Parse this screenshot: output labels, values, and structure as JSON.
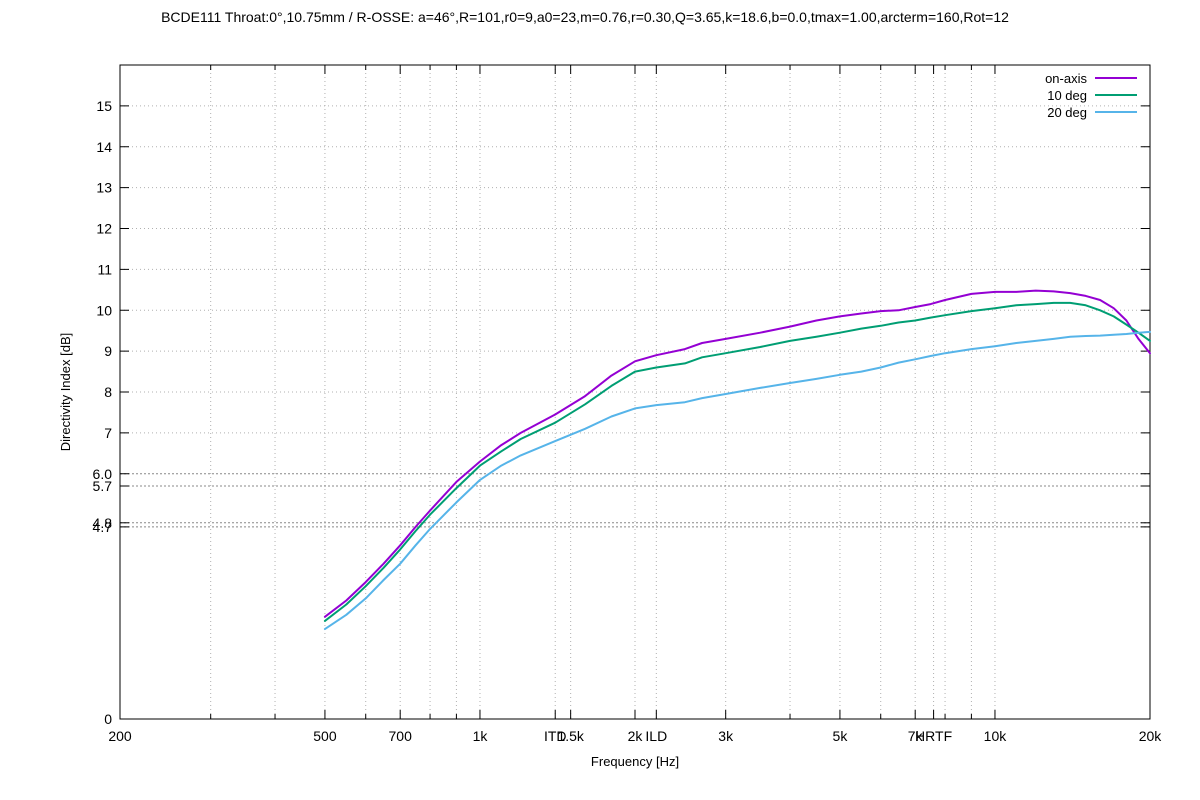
{
  "chart_data": {
    "type": "line",
    "title": "BCDE111 Throat:0°,10.75mm / R-OSSE: a=46°,R=101,r0=9,a0=23,m=0.76,r=0.30,Q=3.65,k=18.6,b=0.0,tmax=1.00,arcterm=160,Rot=12",
    "xlabel": "Frequency [Hz]",
    "ylabel": "Directivity Index [dB]",
    "xscale": "log",
    "xlim": [
      200,
      20000
    ],
    "ylim": [
      0,
      16
    ],
    "grid": true,
    "legend_position": "top-right",
    "x_ticks": [
      {
        "value": 200,
        "label": "200"
      },
      {
        "value": 500,
        "label": "500"
      },
      {
        "value": 700,
        "label": "700"
      },
      {
        "value": 1000,
        "label": "1k"
      },
      {
        "value": 1400,
        "label": "ITD"
      },
      {
        "value": 1500,
        "label": "1.5k"
      },
      {
        "value": 2000,
        "label": "2k"
      },
      {
        "value": 2200,
        "label": "ILD"
      },
      {
        "value": 3000,
        "label": "3k"
      },
      {
        "value": 5000,
        "label": "5k"
      },
      {
        "value": 7000,
        "label": "7k"
      },
      {
        "value": 7600,
        "label": "HRTF"
      },
      {
        "value": 10000,
        "label": "10k"
      },
      {
        "value": 20000,
        "label": "20k"
      }
    ],
    "x_minor_ticks": [
      300,
      400,
      600,
      800,
      900,
      4000,
      6000,
      8000,
      9000
    ],
    "y_ticks": [
      {
        "value": 0,
        "label": "0"
      },
      {
        "value": 4.7,
        "label": "4.7"
      },
      {
        "value": 4.8,
        "label": "4.8"
      },
      {
        "value": 5.7,
        "label": "5.7"
      },
      {
        "value": 6.0,
        "label": "6.0"
      },
      {
        "value": 7,
        "label": "7"
      },
      {
        "value": 8,
        "label": "8"
      },
      {
        "value": 9,
        "label": "9"
      },
      {
        "value": 10,
        "label": "10"
      },
      {
        "value": 11,
        "label": "11"
      },
      {
        "value": 12,
        "label": "12"
      },
      {
        "value": 13,
        "label": "13"
      },
      {
        "value": 14,
        "label": "14"
      },
      {
        "value": 15,
        "label": "15"
      }
    ],
    "series": [
      {
        "name": "on-axis",
        "color": "#9400d3",
        "x": [
          500,
          550,
          600,
          650,
          700,
          750,
          800,
          900,
          1000,
          1100,
          1200,
          1400,
          1600,
          1800,
          2000,
          2200,
          2500,
          2700,
          3000,
          3500,
          4000,
          4500,
          5000,
          5500,
          6000,
          6500,
          7000,
          7500,
          8000,
          9000,
          10000,
          11000,
          12000,
          13000,
          14000,
          15000,
          16000,
          17000,
          18000,
          19000,
          20000
        ],
        "values": [
          2.5,
          2.9,
          3.35,
          3.8,
          4.25,
          4.7,
          5.1,
          5.8,
          6.3,
          6.7,
          7.0,
          7.45,
          7.9,
          8.4,
          8.75,
          8.9,
          9.05,
          9.2,
          9.3,
          9.45,
          9.6,
          9.75,
          9.85,
          9.92,
          9.98,
          10.0,
          10.08,
          10.15,
          10.25,
          10.4,
          10.45,
          10.45,
          10.48,
          10.46,
          10.42,
          10.35,
          10.25,
          10.05,
          9.75,
          9.3,
          8.95
        ]
      },
      {
        "name": "10 deg",
        "color": "#009e73",
        "x": [
          500,
          550,
          600,
          650,
          700,
          750,
          800,
          900,
          1000,
          1100,
          1200,
          1400,
          1600,
          1800,
          2000,
          2200,
          2500,
          2700,
          3000,
          3500,
          4000,
          4500,
          5000,
          5500,
          6000,
          6500,
          7000,
          7500,
          8000,
          9000,
          10000,
          11000,
          12000,
          13000,
          14000,
          15000,
          16000,
          17000,
          18000,
          19000,
          20000
        ],
        "values": [
          2.4,
          2.8,
          3.25,
          3.7,
          4.15,
          4.6,
          5.0,
          5.65,
          6.2,
          6.55,
          6.85,
          7.25,
          7.7,
          8.15,
          8.5,
          8.6,
          8.7,
          8.85,
          8.95,
          9.1,
          9.25,
          9.35,
          9.45,
          9.55,
          9.62,
          9.7,
          9.75,
          9.82,
          9.88,
          9.98,
          10.05,
          10.12,
          10.15,
          10.18,
          10.18,
          10.12,
          10.0,
          9.85,
          9.65,
          9.45,
          9.25
        ]
      },
      {
        "name": "20 deg",
        "color": "#56b4e9",
        "x": [
          500,
          550,
          600,
          650,
          700,
          750,
          800,
          900,
          1000,
          1100,
          1200,
          1400,
          1600,
          1800,
          2000,
          2200,
          2500,
          2700,
          3000,
          3500,
          4000,
          4500,
          5000,
          5500,
          6000,
          6500,
          7000,
          7500,
          8000,
          9000,
          10000,
          11000,
          12000,
          13000,
          14000,
          15000,
          16000,
          17000,
          18000,
          19000,
          20000
        ],
        "values": [
          2.2,
          2.55,
          2.95,
          3.4,
          3.8,
          4.25,
          4.65,
          5.3,
          5.85,
          6.2,
          6.45,
          6.8,
          7.1,
          7.4,
          7.6,
          7.68,
          7.75,
          7.85,
          7.95,
          8.1,
          8.22,
          8.32,
          8.42,
          8.5,
          8.6,
          8.72,
          8.8,
          8.88,
          8.95,
          9.05,
          9.12,
          9.2,
          9.25,
          9.3,
          9.35,
          9.37,
          9.38,
          9.4,
          9.42,
          9.45,
          9.47
        ]
      }
    ]
  }
}
